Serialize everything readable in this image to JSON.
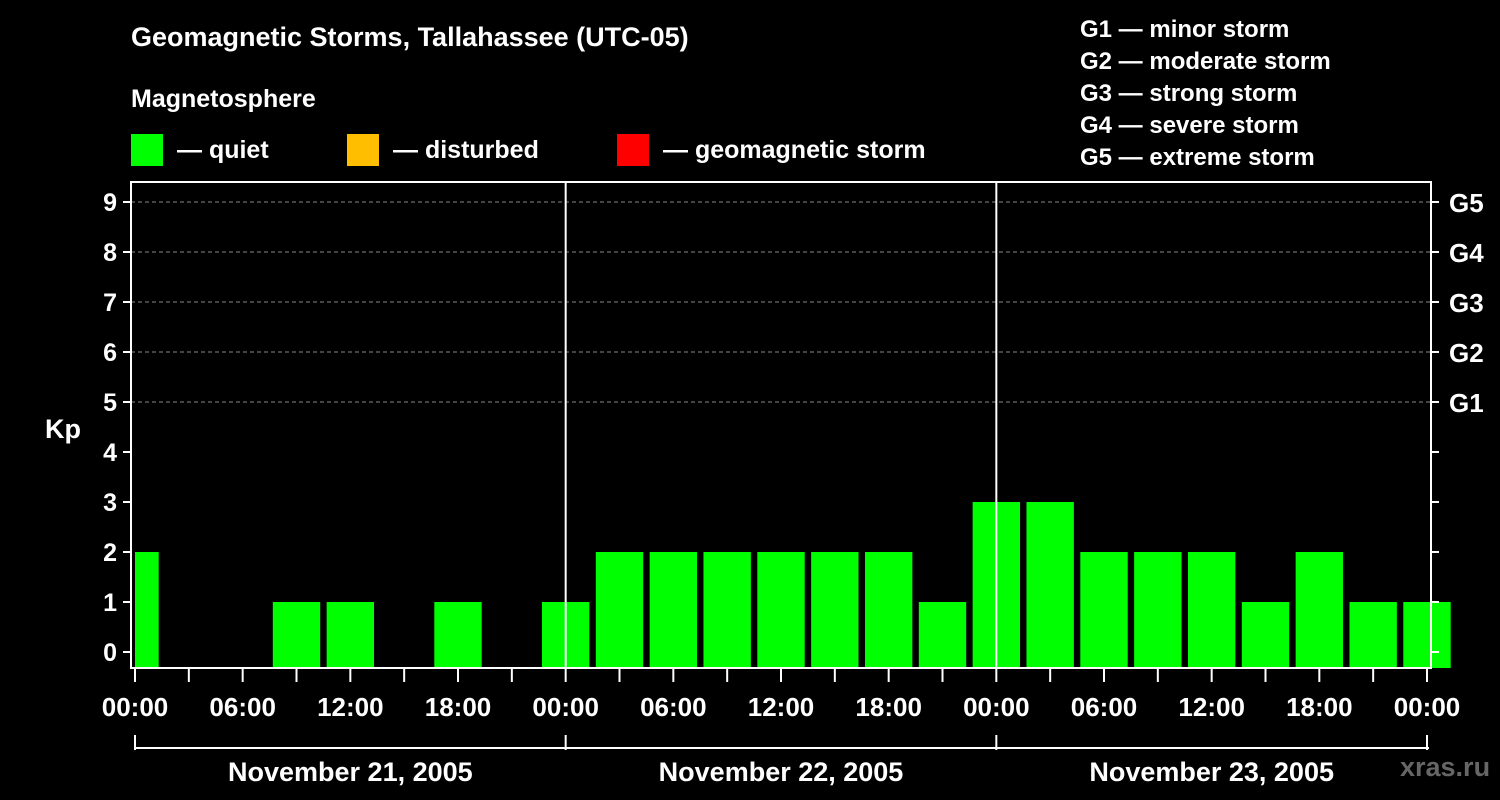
{
  "title": "Geomagnetic Storms, Tallahassee (UTC-05)",
  "legend": {
    "heading": "Magnetosphere",
    "items": [
      {
        "label": "— quiet",
        "color": "#00ff00"
      },
      {
        "label": "— disturbed",
        "color": "#ffbf00"
      },
      {
        "label": "— geomagnetic storm",
        "color": "#ff0000"
      }
    ]
  },
  "storm_scale": [
    "G1 — minor storm",
    "G2 — moderate storm",
    "G3 — strong storm",
    "G4 — severe storm",
    "G5 — extreme storm"
  ],
  "watermark": "xras.ru",
  "chart_data": {
    "type": "bar",
    "ylabel": "Kp",
    "ylim": [
      0,
      9
    ],
    "y_ticks": [
      "0",
      "1",
      "2",
      "3",
      "4",
      "5",
      "6",
      "7",
      "8",
      "9"
    ],
    "right_axis": [
      {
        "kp": 5,
        "label": "G1"
      },
      {
        "kp": 6,
        "label": "G2"
      },
      {
        "kp": 7,
        "label": "G3"
      },
      {
        "kp": 8,
        "label": "G4"
      },
      {
        "kp": 9,
        "label": "G5"
      }
    ],
    "x_tick_labels": [
      "00:00",
      "06:00",
      "12:00",
      "18:00",
      "00:00",
      "06:00",
      "12:00",
      "18:00",
      "00:00",
      "06:00",
      "12:00",
      "18:00",
      "00:00"
    ],
    "days": [
      "November 21, 2005",
      "November 22, 2005",
      "November 23, 2005"
    ],
    "values": [
      2,
      0,
      0,
      1,
      1,
      0,
      1,
      0,
      1,
      2,
      2,
      2,
      2,
      2,
      2,
      1,
      3,
      3,
      2,
      2,
      2,
      1,
      2,
      1,
      1
    ],
    "bar_color": "#00ff00",
    "grid": true
  }
}
